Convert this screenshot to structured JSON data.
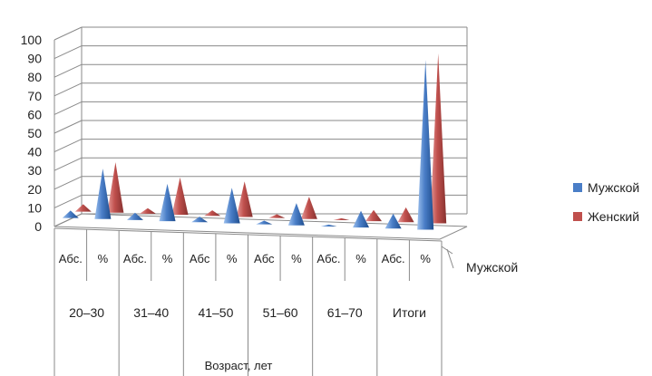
{
  "chart_data": {
    "type": "bar",
    "bar_shape": "cone-3d",
    "title": "",
    "xlabel": "Возраст, лет",
    "ylabel": "",
    "ylim": [
      0,
      100
    ],
    "yticks": [
      "0",
      "10",
      "20",
      "30",
      "40",
      "50",
      "60",
      "70",
      "80",
      "90",
      "100"
    ],
    "grid": true,
    "depth_axis_label": "Мужской",
    "legend_position": "right",
    "groups": [
      "20–30",
      "31–40",
      "41–50",
      "51–60",
      "61–70",
      "Итоги"
    ],
    "categories": [
      "Абс.",
      "%",
      "Абс.",
      "%",
      "Абс",
      "%",
      "Абс",
      "%",
      "Абс.",
      "%",
      "Абс.",
      "%"
    ],
    "series": [
      {
        "name": "Мужской",
        "color": "#4A7EC7",
        "values": [
          4,
          27,
          4,
          20,
          3,
          19,
          2,
          12,
          1,
          9,
          8,
          91
        ]
      },
      {
        "name": "Женский",
        "color": "#C0504D",
        "values": [
          4,
          27,
          3,
          20,
          3,
          19,
          2,
          12,
          1,
          6,
          8,
          91
        ]
      }
    ]
  }
}
